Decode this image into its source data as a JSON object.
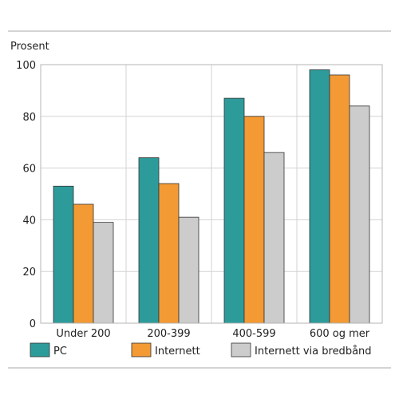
{
  "chart_data": {
    "type": "bar",
    "title": "",
    "xlabel": "",
    "ylabel": "Prosent",
    "ylim": [
      0,
      100
    ],
    "yticks": [
      0,
      20,
      40,
      60,
      80,
      100
    ],
    "grid": true,
    "legend_position": "bottom",
    "categories": [
      "Under 200",
      "200-399",
      "400-599",
      "600 og mer"
    ],
    "series": [
      {
        "name": "PC",
        "color": "#2e9b9b",
        "values": [
          53,
          64,
          87,
          98
        ]
      },
      {
        "name": "Internett",
        "color": "#f39a35",
        "values": [
          46,
          54,
          80,
          96
        ]
      },
      {
        "name": "Internett via bredbånd",
        "color": "#cccccc",
        "values": [
          39,
          41,
          66,
          84
        ]
      }
    ]
  }
}
